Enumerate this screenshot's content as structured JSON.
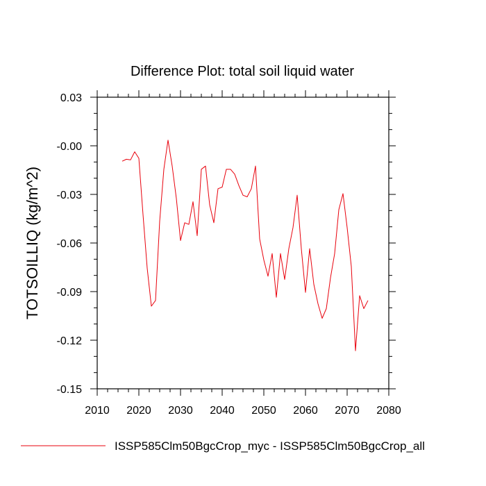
{
  "chart_data": {
    "type": "line",
    "title": "Difference Plot: total soil liquid water",
    "ylabel": "TOTSOILLIQ  (kg/m^2)",
    "xlabel": "",
    "xlim": [
      2010,
      2080
    ],
    "ylim": [
      -0.15,
      0.03
    ],
    "x_ticks": [
      2010,
      2020,
      2030,
      2040,
      2050,
      2060,
      2070,
      2080
    ],
    "x_tick_labels": [
      "2010",
      "2020",
      "2030",
      "2040",
      "2050",
      "2060",
      "2070",
      "2080"
    ],
    "y_ticks": [
      0.03,
      0.0,
      -0.03,
      -0.06,
      -0.09,
      -0.12,
      -0.15
    ],
    "y_tick_labels": [
      "0.03",
      "-0.00",
      "-0.03",
      "-0.06",
      "-0.09",
      "-0.12",
      "-0.15"
    ],
    "grid": false,
    "legend_position": "bottom-left",
    "series": [
      {
        "name": "ISSP585Clm50BgcCrop_myc - ISSP585Clm50BgcCrop_all",
        "color": "#e8000b",
        "x": [
          2016,
          2017,
          2018,
          2019,
          2020,
          2021,
          2022,
          2023,
          2024,
          2025,
          2026,
          2027,
          2028,
          2029,
          2030,
          2031,
          2032,
          2033,
          2034,
          2035,
          2036,
          2037,
          2038,
          2039,
          2040,
          2041,
          2042,
          2043,
          2044,
          2045,
          2046,
          2047,
          2048,
          2049,
          2050,
          2051,
          2052,
          2053,
          2054,
          2055,
          2056,
          2057,
          2058,
          2059,
          2060,
          2061,
          2062,
          2063,
          2064,
          2065,
          2066,
          2067,
          2068,
          2069,
          2070,
          2071,
          2072,
          2073,
          2074,
          2075
        ],
        "values": [
          -0.0095,
          -0.0083,
          -0.0087,
          -0.0037,
          -0.0077,
          -0.0425,
          -0.0755,
          -0.099,
          -0.0955,
          -0.0465,
          -0.0145,
          0.0035,
          -0.0125,
          -0.0325,
          -0.0585,
          -0.0475,
          -0.0485,
          -0.0345,
          -0.0555,
          -0.0145,
          -0.0125,
          -0.0365,
          -0.0475,
          -0.0265,
          -0.0255,
          -0.0145,
          -0.0145,
          -0.0175,
          -0.0245,
          -0.0305,
          -0.0315,
          -0.0265,
          -0.0125,
          -0.0575,
          -0.0705,
          -0.0805,
          -0.0665,
          -0.0935,
          -0.0665,
          -0.0825,
          -0.0635,
          -0.0505,
          -0.0305,
          -0.0635,
          -0.0905,
          -0.0635,
          -0.0855,
          -0.0975,
          -0.1065,
          -0.1005,
          -0.0815,
          -0.0665,
          -0.0395,
          -0.0295,
          -0.0505,
          -0.0745,
          -0.1265,
          -0.0925,
          -0.1005,
          -0.0955
        ]
      }
    ]
  }
}
